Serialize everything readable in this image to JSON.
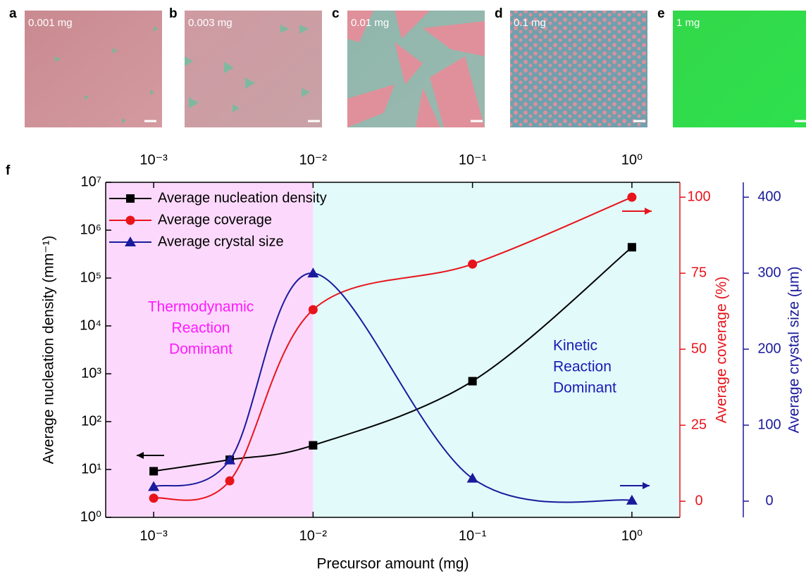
{
  "panels": [
    {
      "letter": "a",
      "label": "0.001 mg"
    },
    {
      "letter": "b",
      "label": "0.003 mg"
    },
    {
      "letter": "c",
      "label": "0.01 mg"
    },
    {
      "letter": "d",
      "label": "0.1 mg"
    },
    {
      "letter": "e",
      "label": "1 mg"
    }
  ],
  "chart_data": {
    "type": "line",
    "panel_letter": "f",
    "xlabel": "Precursor amount (mg)",
    "ylabel": "Average nucleation density (mm⁻¹)",
    "y2label": "Average coverage (%)",
    "y3label": "Average crystal size (μm)",
    "xscale": "log",
    "yscale": "log",
    "xlim": [
      0.0005,
      2
    ],
    "xticks": [
      {
        "value": 0.001,
        "label": "10⁻³"
      },
      {
        "value": 0.01,
        "label": "10⁻²"
      },
      {
        "value": 0.1,
        "label": "10⁻¹"
      },
      {
        "value": 1,
        "label": "10⁰"
      }
    ],
    "ylim": [
      1,
      10000000
    ],
    "yticks": [
      {
        "value": 1,
        "label": "10⁰"
      },
      {
        "value": 10,
        "label": "10¹"
      },
      {
        "value": 100,
        "label": "10²"
      },
      {
        "value": 1000,
        "label": "10³"
      },
      {
        "value": 10000,
        "label": "10⁴"
      },
      {
        "value": 100000,
        "label": "10⁵"
      },
      {
        "value": 1000000,
        "label": "10⁶"
      },
      {
        "value": 10000000,
        "label": "10⁷"
      }
    ],
    "y2lim": [
      -5.3,
      104.9
    ],
    "y2ticks": [
      0,
      25,
      50,
      75,
      100
    ],
    "y2color": "#e8141b",
    "y3lim": [
      -21.3,
      419.6
    ],
    "y3ticks": [
      0,
      100,
      200,
      300,
      400
    ],
    "y3color": "#1a1a9c",
    "shade_split": 0.01,
    "shade_colors": [
      "#fcd9fc",
      "#e2fafa"
    ],
    "legend": "upper left",
    "x": [
      0.001,
      0.003,
      0.01,
      0.1,
      1
    ],
    "series": [
      {
        "name": "Average nucleation density",
        "color": "#000000",
        "marker": "square",
        "axis": "y",
        "values": [
          9.2,
          16,
          32,
          700,
          440000
        ]
      },
      {
        "name": "Average coverage",
        "color": "#e8141b",
        "marker": "circle",
        "axis": "y2",
        "values": [
          1,
          6.7,
          63,
          78,
          100
        ]
      },
      {
        "name": "Average crystal size",
        "color": "#1a1a9c",
        "marker": "triangle",
        "axis": "y3",
        "values": [
          19,
          54,
          300,
          30,
          1
        ]
      }
    ],
    "annotations": [
      {
        "lines": [
          "Thermodynamic",
          "Reaction",
          "Dominant"
        ],
        "color": "#ff1aff"
      },
      {
        "lines": [
          "Kinetic",
          "Reaction",
          "Dominant"
        ],
        "color": "#1a1ab4"
      }
    ]
  }
}
